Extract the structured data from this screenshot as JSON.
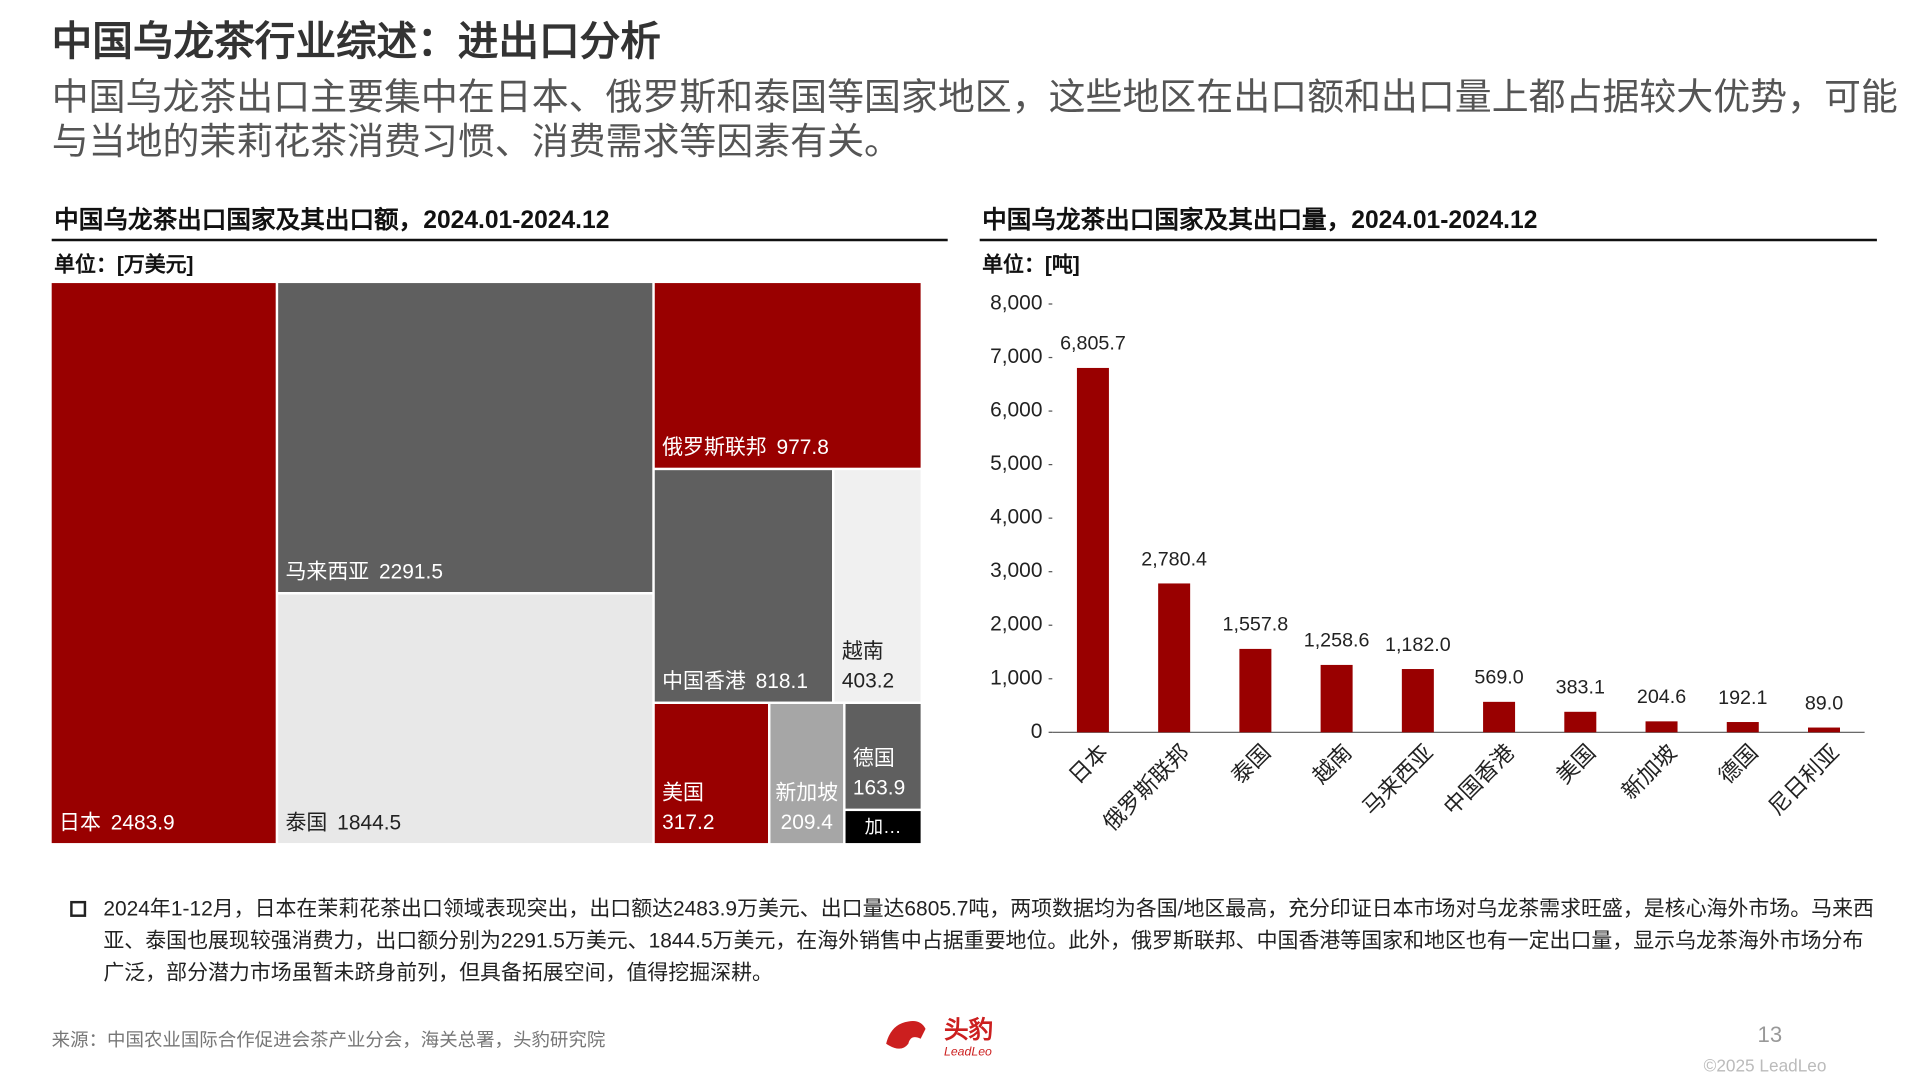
{
  "header": {
    "title": "中国乌龙茶行业综述：进出口分析",
    "subtitle": "中国乌龙茶出口主要集中在日本、俄罗斯和泰国等国家地区，这些地区在出口额和出口量上都占据较大优势，可能与当地的茉莉花茶消费习惯、消费需求等因素有关。"
  },
  "chart_data": [
    {
      "type": "treemap",
      "title": "中国乌龙茶出口国家及其出口额，2024.01-2024.12",
      "unit": "单位：[万美元]",
      "categories": [
        "日本",
        "马来西亚",
        "泰国",
        "俄罗斯联邦",
        "中国香港",
        "越南",
        "美国",
        "新加坡",
        "德国",
        "加…"
      ],
      "values": [
        2483.9,
        2291.5,
        1844.5,
        977.8,
        818.1,
        403.2,
        317.2,
        209.4,
        163.9,
        39
      ],
      "colors": [
        "#990000",
        "#5f5f5f",
        "#e8e8e8",
        "#990000",
        "#5f5f5f",
        "#f0f0f0",
        "#990000",
        "#a6a6a6",
        "#5f5f5f",
        "#000000"
      ]
    },
    {
      "type": "bar",
      "title": "中国乌龙茶出口国家及其出口量，2024.01-2024.12",
      "unit": "单位：[吨]",
      "categories": [
        "日本",
        "俄罗斯联邦",
        "泰国",
        "越南",
        "马来西亚",
        "中国香港",
        "美国",
        "新加坡",
        "德国",
        "尼日利亚"
      ],
      "values": [
        6805.7,
        2780.4,
        1557.8,
        1258.6,
        1182.0,
        569.0,
        383.1,
        204.6,
        192.1,
        89.0
      ],
      "value_labels": [
        "6,805.7",
        "2,780.4",
        "1,557.8",
        "1,258.6",
        "1,182.0",
        "569.0",
        "383.1",
        "204.6",
        "192.1",
        "89.0"
      ],
      "color": "#990000",
      "ylim": [
        0,
        8000
      ],
      "yticks": [
        0,
        {
          "value": 1000,
          "label": "1,000"
        },
        {
          "value": 2000,
          "label": "2,000"
        },
        {
          "value": 3000,
          "label": "3,000"
        },
        {
          "value": 4000,
          "label": "4,000"
        },
        {
          "value": 5000,
          "label": "5,000"
        },
        {
          "value": 6000,
          "label": "6,000"
        },
        {
          "value": 7000,
          "label": "7,000"
        },
        {
          "value": 8000,
          "label": "8,000"
        }
      ]
    }
  ],
  "notes": [
    "2024年1-12月，日本在茉莉花茶出口领域表现突出，出口额达2483.9万美元、出口量达6805.7吨，两项数据均为各国/地区最高，充分印证日本市场对乌龙茶需求旺盛，是核心海外市场。马来西亚、泰国也展现较强消费力，出口额分别为2291.5万美元、1844.5万美元，在海外销售中占据重要地位。此外，俄罗斯联邦、中国香港等国家和地区也有一定出口量，显示乌龙茶海外市场分布广泛，部分潜力市场虽暂未跻身前列，但具备拓展空间，值得挖掘深耕。"
  ],
  "footer": {
    "source": "来源：中国农业国际合作促进会茶产业分会，海关总署，头豹研究院",
    "logo": "头豹",
    "logo_sub": "LeadLeo",
    "page": "13",
    "copyright": "©2025 LeadLeo"
  }
}
